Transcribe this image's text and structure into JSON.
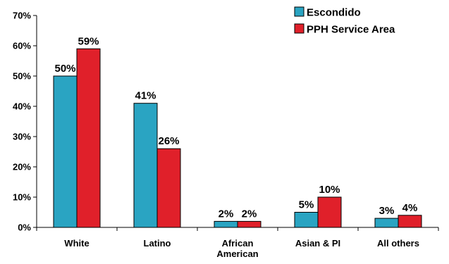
{
  "chart_data": {
    "type": "bar",
    "categories": [
      [
        "White"
      ],
      [
        "Latino"
      ],
      [
        "African",
        "American"
      ],
      [
        "Asian & PI"
      ],
      [
        "All others"
      ]
    ],
    "series": [
      {
        "name": "Escondido",
        "values": [
          50,
          41,
          2,
          5,
          3
        ],
        "labels": [
          "50%",
          "41%",
          "2%",
          "5%",
          "3%"
        ],
        "color": "#2aa4c2"
      },
      {
        "name": "PPH Service Area",
        "values": [
          59,
          26,
          2,
          10,
          4
        ],
        "labels": [
          "59%",
          "26%",
          "2%",
          "10%",
          "4%"
        ],
        "color": "#e0202a"
      }
    ],
    "yticks": [
      "0%",
      "10%",
      "20%",
      "30%",
      "40%",
      "50%",
      "60%",
      "70%"
    ],
    "ylim": [
      0,
      70
    ],
    "grid": false,
    "legend_position": "top-right"
  }
}
